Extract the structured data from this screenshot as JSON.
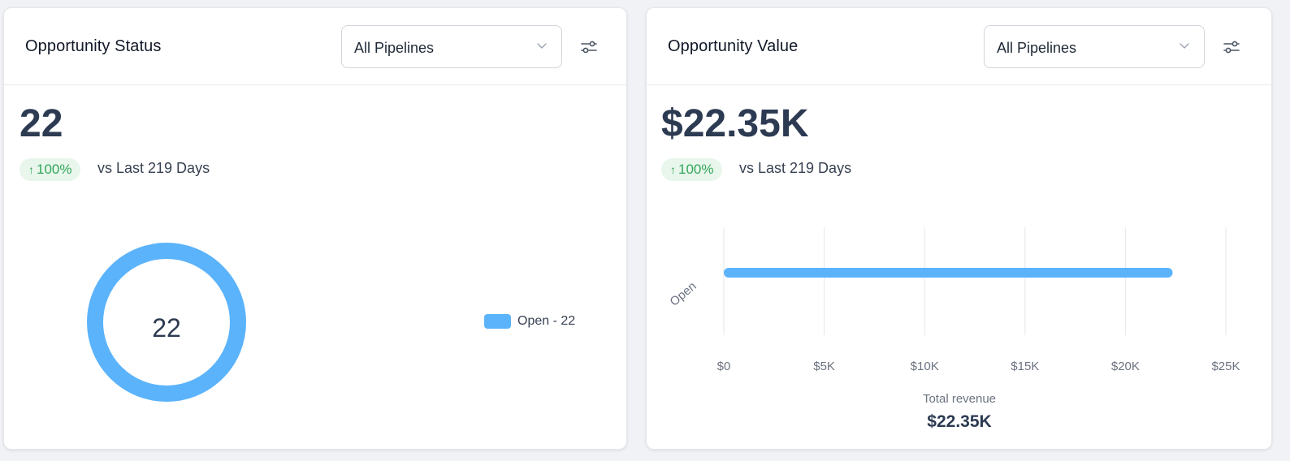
{
  "colors": {
    "accent": "#5bb3fb",
    "positive": "#33a65a",
    "positive_bg": "#e8f6ec",
    "grid": "#e5e7eb",
    "tick": "#6b7280"
  },
  "opportunity_status": {
    "title": "Opportunity Status",
    "pipeline_select": {
      "value": "All Pipelines",
      "icon": "chevron-down-icon"
    },
    "filter_icon": "sliders-icon",
    "total": "22",
    "change": {
      "arrow": "↑",
      "value": "100%",
      "comparison": "vs Last 219 Days"
    },
    "donut": {
      "center_label": "22"
    },
    "legend": [
      {
        "label": "Open - 22",
        "color": "#5bb3fb"
      }
    ]
  },
  "opportunity_value": {
    "title": "Opportunity Value",
    "pipeline_select": {
      "value": "All Pipelines",
      "icon": "chevron-down-icon"
    },
    "filter_icon": "sliders-icon",
    "total": "$22.35K",
    "change": {
      "arrow": "↑",
      "value": "100%",
      "comparison": "vs Last 219 Days"
    },
    "footer": {
      "label": "Total revenue",
      "value": "$22.35K"
    }
  },
  "chart_data": [
    {
      "type": "pie",
      "categories": [
        "Open"
      ],
      "values": [
        22
      ],
      "donut": true,
      "title": "",
      "legend_placement": "right"
    },
    {
      "type": "bar",
      "orientation": "horizontal",
      "categories": [
        "Open"
      ],
      "values": [
        22350
      ],
      "title": "",
      "xlabel": "",
      "ylabel": "",
      "xlim": [
        0,
        25000
      ],
      "x_ticks": [
        0,
        5000,
        10000,
        15000,
        20000,
        25000
      ],
      "x_tick_labels": [
        "$0",
        "$5K",
        "$10K",
        "$15K",
        "$20K",
        "$25K"
      ],
      "grid": "vertical"
    }
  ]
}
